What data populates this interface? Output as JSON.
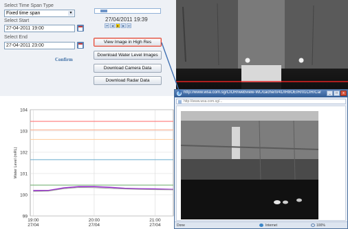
{
  "controls": {
    "time_span_type_label": "Select Time Span Type",
    "time_span_type_value": "Fixed time span",
    "start_label": "Select Start",
    "start_value": "27-04-2011 19:00",
    "end_label": "Select End",
    "end_value": "27-04-2011 23:00",
    "confirm_label": "Confirm"
  },
  "player": {
    "timestamp": "27/04/2011 19:39",
    "slider_position_fraction": 0.08,
    "buttons": [
      "first",
      "previous",
      "play",
      "next",
      "last"
    ]
  },
  "actions": {
    "view_high_res": "View Image in High Res",
    "download_water_level": "Download Water Level Images",
    "download_camera": "Download Camera Data",
    "download_radar": "Download Radar Data"
  },
  "popup": {
    "title": "http://www.wsa.com.sg/CIOR/webview-WL/cache/0/41/IR8OEIR/01CIR/Cam01",
    "address": "http://www.wsa.com.sg/...",
    "status_done": "Done",
    "status_zone": "Internet",
    "zoom": "100%"
  },
  "colors": {
    "panel_bg": "#eef1f6",
    "accent_blue": "#3d6ea5",
    "highlight_red": "#e04a3a",
    "series_purple": "#9933cc",
    "threshold_red": "#ff6666",
    "threshold_blue": "#66aacc",
    "threshold_green": "#66aa66"
  },
  "chart_data": {
    "type": "line",
    "ylabel": "Water Level (mRL)",
    "ylim": [
      99,
      104
    ],
    "yticks": [
      99,
      100,
      101,
      102,
      103,
      104
    ],
    "x_ticks": [
      {
        "time": "19:00",
        "date": "27/04"
      },
      {
        "time": "20:00",
        "date": "27/04"
      },
      {
        "time": "21:00",
        "date": "27/04"
      }
    ],
    "thresholds": [
      {
        "value": 103.45,
        "color": "#ff6666"
      },
      {
        "value": 103.05,
        "color": "#ffaa88"
      },
      {
        "value": 102.6,
        "color": "#ffcc99"
      },
      {
        "value": 101.65,
        "color": "#66aacc"
      },
      {
        "value": 100.45,
        "color": "#66aa66"
      }
    ],
    "series": [
      {
        "color": "#9933cc",
        "x_hours": [
          19.0,
          19.25,
          19.5,
          19.75,
          20.0,
          20.25,
          20.5,
          20.75,
          21.0,
          21.3
        ],
        "values": [
          100.2,
          100.2,
          100.32,
          100.38,
          100.38,
          100.35,
          100.3,
          100.28,
          100.27,
          100.25
        ]
      },
      {
        "color": "#a0a0a0",
        "x_hours": [
          19.0,
          19.25,
          19.5,
          19.75,
          20.0,
          20.25,
          20.5,
          20.75,
          21.0,
          21.3
        ],
        "values": [
          100.15,
          100.17,
          100.28,
          100.34,
          100.33,
          100.3,
          100.27,
          100.25,
          100.24,
          100.23
        ]
      }
    ],
    "grid": true,
    "legend": "none"
  }
}
